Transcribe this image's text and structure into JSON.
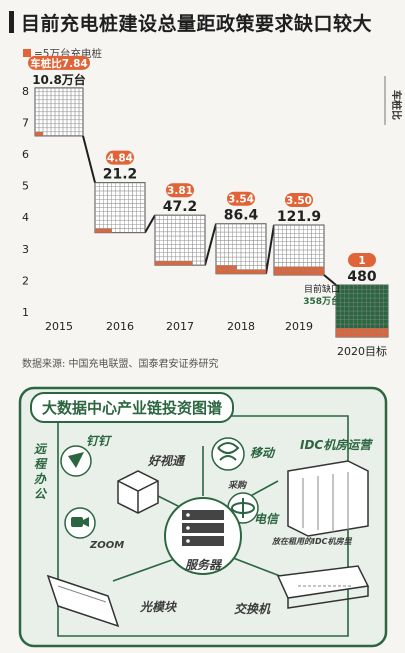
{
  "title": "目前充电桩建设总量距政策要求缺口较大",
  "legend": "=5万台充电桩",
  "ratio_label": "车桩比",
  "source": "数据来源: 中国充电联盟、国泰君安证券研究",
  "gap_label": "目前缺口",
  "gap_value": "358万台",
  "colors": {
    "accent": "#e06438",
    "dark": "#1f1f1f",
    "green": "#2b6640",
    "background": "#f6f5f2"
  },
  "chart_data": {
    "type": "bar",
    "categories": [
      "2015",
      "2016",
      "2017",
      "2018",
      "2019",
      "2020目标"
    ],
    "ratios": [
      7.84,
      4.84,
      3.81,
      3.54,
      3.5,
      1
    ],
    "ratio_labels": [
      "车桩比7.84",
      "4.84",
      "3.81",
      "3.54",
      "3.50",
      "1"
    ],
    "chargers_wan": [
      10.8,
      21.2,
      47.2,
      86.4,
      121.9,
      480
    ],
    "value_labels": [
      "10.8万台",
      "21.2",
      "47.2",
      "86.4",
      "121.9",
      "480"
    ],
    "y_ticks": [
      1,
      2,
      3,
      4,
      5,
      6,
      7,
      8
    ],
    "ylim": [
      0.5,
      8.5
    ],
    "unit_per_cell": 5
  },
  "infographic": {
    "title": "大数据中心产业链投资图谱",
    "labels": {
      "dingding": "钉钉",
      "remote_office": "远程办公",
      "haoshitong": "好视通",
      "zoom": "ZOOM",
      "mobile": "移动",
      "idc": "IDC机房运营",
      "procure": "采购",
      "telecom": "电信",
      "idc_rack": "放在租用的IDC机房里",
      "server": "服务器",
      "optical_module": "光模块",
      "switch": "交换机"
    }
  }
}
